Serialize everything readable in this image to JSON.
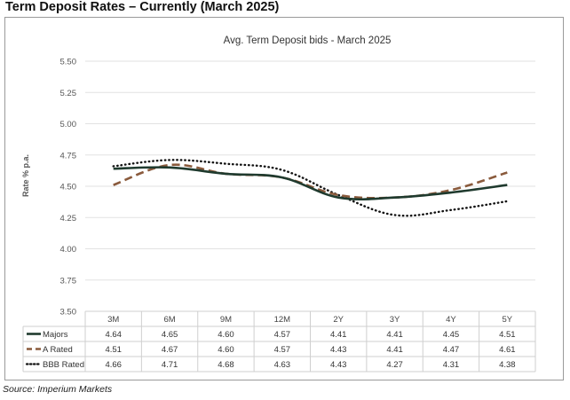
{
  "header": {
    "title": "Term Deposit Rates – Currently (March 2025)"
  },
  "footer": {
    "source": "Source: Imperium Markets"
  },
  "chart_data": {
    "type": "line",
    "title": "Avg. Term Deposit bids - March 2025",
    "xlabel": "",
    "ylabel": "Rate % p.a.",
    "categories": [
      "3M",
      "6M",
      "9M",
      "12M",
      "2Y",
      "3Y",
      "4Y",
      "5Y"
    ],
    "ylim": [
      3.5,
      5.5
    ],
    "yticks": [
      "5.50",
      "5.25",
      "5.00",
      "4.75",
      "4.50",
      "4.25",
      "4.00",
      "3.75",
      "3.50"
    ],
    "grid": true,
    "legend": "data-table-left",
    "series": [
      {
        "name": "Majors",
        "values": [
          4.64,
          4.65,
          4.6,
          4.57,
          4.41,
          4.41,
          4.45,
          4.51
        ],
        "labels": [
          "4.64",
          "4.65",
          "4.60",
          "4.57",
          "4.41",
          "4.41",
          "4.45",
          "4.51"
        ],
        "color": "#1f3a2e",
        "style": "solid"
      },
      {
        "name": "A Rated",
        "values": [
          4.51,
          4.67,
          4.6,
          4.57,
          4.43,
          4.41,
          4.47,
          4.61
        ],
        "labels": [
          "4.51",
          "4.67",
          "4.60",
          "4.57",
          "4.43",
          "4.41",
          "4.47",
          "4.61"
        ],
        "color": "#8a5a3c",
        "style": "dashed"
      },
      {
        "name": "BBB Rated",
        "values": [
          4.66,
          4.71,
          4.68,
          4.63,
          4.43,
          4.27,
          4.31,
          4.38
        ],
        "labels": [
          "4.66",
          "4.71",
          "4.68",
          "4.63",
          "4.43",
          "4.27",
          "4.31",
          "4.38"
        ],
        "color": "#111111",
        "style": "dotted"
      }
    ]
  }
}
